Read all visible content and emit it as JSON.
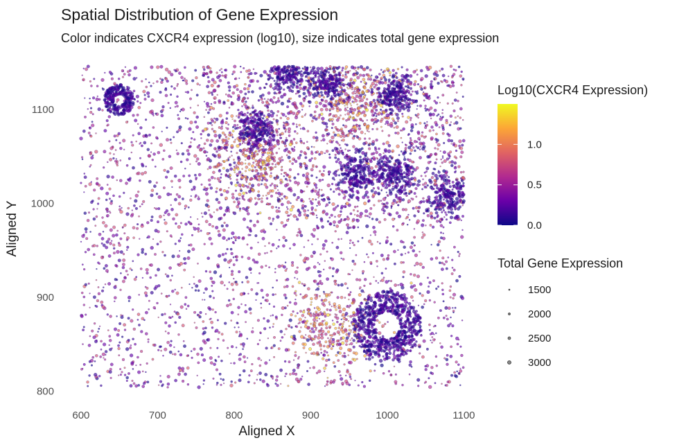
{
  "title": "Spatial Distribution of Gene Expression",
  "subtitle": "Color indicates CXCR4 expression (log10), size indicates total gene expression",
  "chart_data": {
    "type": "scatter",
    "title": "Spatial Distribution of Gene Expression",
    "subtitle": "Color indicates CXCR4 expression (log10), size indicates total gene expression",
    "xlabel": "Aligned X",
    "ylabel": "Aligned Y",
    "xlim": [
      582,
      1106
    ],
    "ylim": [
      796,
      1148
    ],
    "x_ticks": [
      600,
      700,
      800,
      900,
      1000,
      1100
    ],
    "y_ticks": [
      800,
      900,
      1000,
      1100
    ],
    "grid": false,
    "color_legend": {
      "title": "Log10(CXCR4 Expression)",
      "scale": "plasma",
      "range": [
        0.0,
        1.5
      ],
      "ticks": [
        0.0,
        0.5,
        1.0
      ],
      "tick_labels": [
        "0.0",
        "0.5",
        "1.0"
      ],
      "colors": [
        "#0d0887",
        "#6a00a8",
        "#b12a90",
        "#e16462",
        "#fca636",
        "#f0f921"
      ]
    },
    "size_legend": {
      "title": "Total Gene Expression",
      "values": [
        1500,
        2000,
        2500,
        3000
      ],
      "labels": [
        "1500",
        "2000",
        "2500",
        "3000"
      ]
    },
    "points_summary": {
      "x_range": [
        600,
        1100
      ],
      "y_range": [
        804,
        1146
      ],
      "dense_low_expression_clusters": [
        {
          "x": 650,
          "y": 1110,
          "note": "ring"
        },
        {
          "x": 830,
          "y": 1080
        },
        {
          "x": 870,
          "y": 1140
        },
        {
          "x": 920,
          "y": 1130
        },
        {
          "x": 1010,
          "y": 1115
        },
        {
          "x": 960,
          "y": 1030
        },
        {
          "x": 1010,
          "y": 1030
        },
        {
          "x": 1080,
          "y": 1008
        },
        {
          "x": 1000,
          "y": 870,
          "note": "ring"
        }
      ],
      "high_expression_regions": [
        {
          "x": 960,
          "y": 1110
        },
        {
          "x": 830,
          "y": 1050
        },
        {
          "x": 930,
          "y": 870
        }
      ]
    }
  }
}
